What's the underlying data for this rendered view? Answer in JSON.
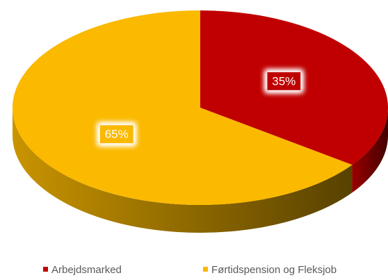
{
  "chart_data": {
    "type": "pie",
    "categories": [
      "Arbejdsmarked",
      "Førtidspension og Fleksjob"
    ],
    "values": [
      35,
      65
    ],
    "value_labels": [
      "35%",
      "65%"
    ],
    "colors": [
      "#c00000",
      "#fbb900"
    ],
    "legend": "bottom"
  }
}
